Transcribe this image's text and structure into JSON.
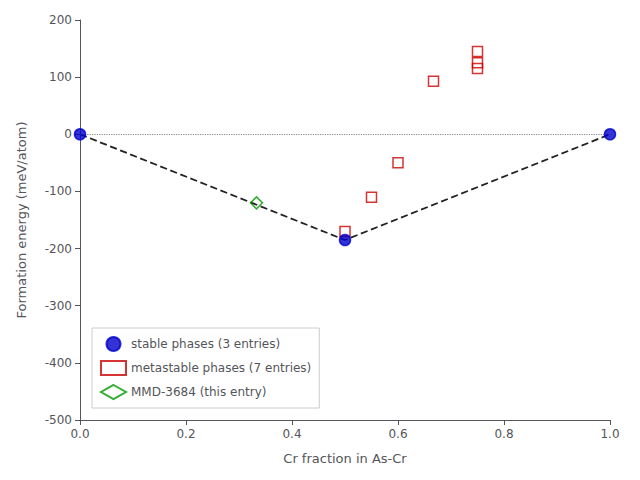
{
  "chart_data": {
    "type": "scatter",
    "xlabel": "Cr fraction in As-Cr",
    "ylabel": "Formation energy (meV/atom)",
    "xlim": [
      0.0,
      1.0
    ],
    "ylim": [
      -500,
      200
    ],
    "xticks": [
      {
        "value": 0,
        "label": "0.0"
      },
      0.2,
      0.4,
      0.6,
      0.8,
      {
        "value": 1,
        "label": "1.0"
      }
    ],
    "yticks": [
      -500,
      -400,
      -300,
      -200,
      -100,
      0,
      100,
      200
    ],
    "grid": false,
    "legend": "lower left",
    "series": [
      {
        "type": "hline",
        "line_style": "dotted",
        "color": "#888888",
        "values": [
          0.0
        ]
      },
      {
        "type": "line",
        "line_style": "dashed",
        "color": "#222222",
        "x": [
          0.0,
          0.5,
          1.0
        ],
        "values": [
          0.0,
          -185.0,
          0.0
        ]
      },
      {
        "type": "scatter",
        "name": "stable phases (3 entries)",
        "marker": "circle",
        "color": "#0000cc",
        "x": [
          0.0,
          0.5,
          1.0
        ],
        "values": [
          0.0,
          -185.0,
          0.0
        ]
      },
      {
        "type": "scatter",
        "name": "metastable phases (7 entries)",
        "marker": "square_open",
        "color": "#cc0000",
        "x": [
          0.5,
          0.55,
          0.6,
          0.667,
          0.75,
          0.75,
          0.75
        ],
        "values": [
          -170.0,
          -110.0,
          -50.0,
          93.0,
          115.0,
          125.0,
          145.0
        ]
      },
      {
        "type": "scatter",
        "name": "MMD-3684 (this entry)",
        "marker": "diamond_open",
        "color": "#009900",
        "x": [
          0.333
        ],
        "values": [
          -120.0
        ]
      }
    ]
  }
}
